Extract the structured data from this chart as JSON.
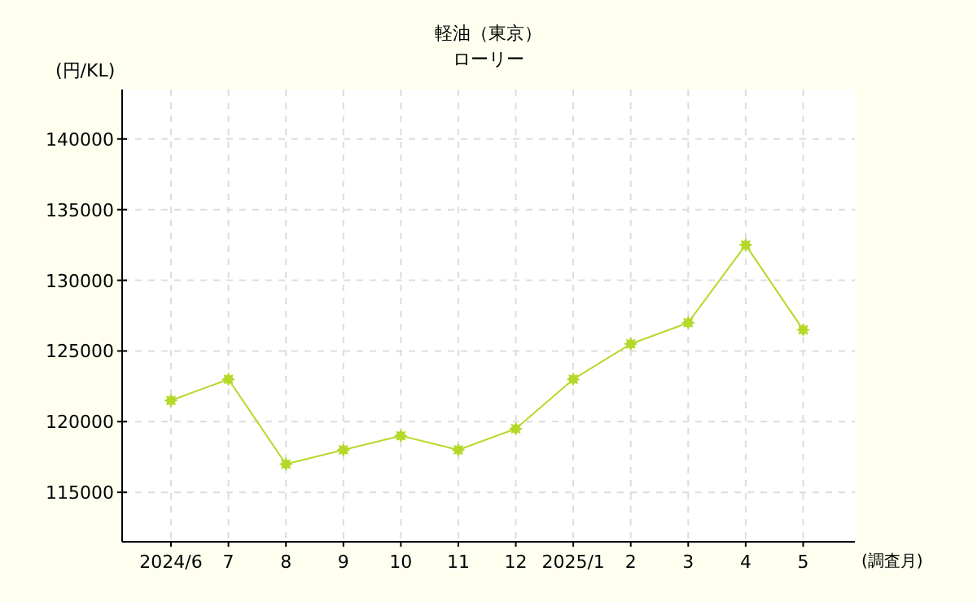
{
  "chart_data": {
    "type": "line",
    "title": "軽油（東京）",
    "subtitle": "ローリー",
    "ylabel": "(円/KL)",
    "xlabel": "(調査月)",
    "categories": [
      "2024/6",
      "7",
      "8",
      "9",
      "10",
      "11",
      "12",
      "2025/1",
      "2",
      "3",
      "4",
      "5"
    ],
    "series": [
      {
        "color": "#b5d92a",
        "values": [
          121500,
          123000,
          117000,
          118000,
          119000,
          118000,
          119500,
          123000,
          125500,
          127000,
          132500,
          126500
        ]
      }
    ],
    "ylim": [
      111500,
      143500
    ],
    "yticks": [
      115000,
      120000,
      125000,
      130000,
      135000,
      140000
    ],
    "grid": true,
    "marker": "star",
    "line_style": "solid"
  }
}
